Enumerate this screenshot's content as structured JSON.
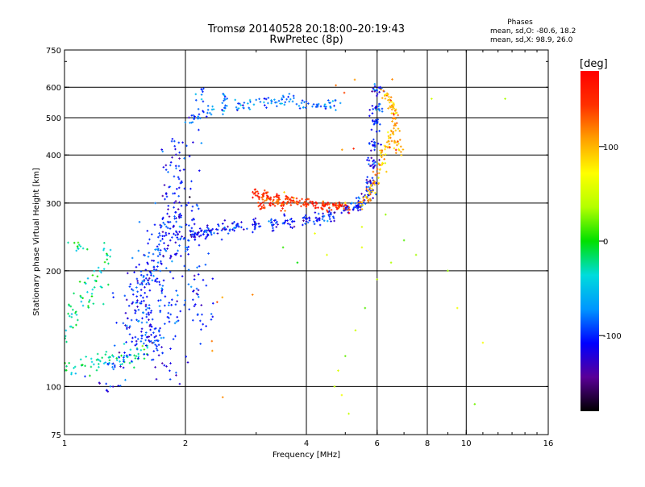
{
  "chart_data": {
    "type": "scatter",
    "title": "Tromsø 20140528 20:18:00–20:19:43",
    "subtitle": "RwPretec (8p)",
    "info": {
      "heading": "Phases",
      "line1": "mean, sd,O: -80.6, 18.2",
      "line2": "mean, sd,X:  98.9, 26.0"
    },
    "xlabel": "Frequency [MHz]",
    "ylabel": "Stationary phase Virtual Height [km]",
    "x_scale": "log",
    "y_scale": "log",
    "xlim": [
      1,
      16
    ],
    "ylim": [
      75,
      750
    ],
    "x_ticks": [
      {
        "v": 1,
        "label": "1"
      },
      {
        "v": 2,
        "label": "2"
      },
      {
        "v": 4,
        "label": "4"
      },
      {
        "v": 6,
        "label": "6"
      },
      {
        "v": 8,
        "label": "8"
      },
      {
        "v": 10,
        "label": "10"
      },
      {
        "v": 16,
        "label": "16"
      }
    ],
    "x_grid": [
      2,
      4,
      6,
      8,
      10
    ],
    "y_ticks": [
      {
        "v": 75,
        "label": "75"
      },
      {
        "v": 100,
        "label": "100"
      },
      {
        "v": 200,
        "label": "200"
      },
      {
        "v": 300,
        "label": "300"
      },
      {
        "v": 400,
        "label": "400"
      },
      {
        "v": 500,
        "label": "500"
      },
      {
        "v": 600,
        "label": "600"
      },
      {
        "v": 750,
        "label": "750"
      }
    ],
    "y_grid": [
      100,
      200,
      300,
      400,
      500,
      600
    ],
    "grid": true,
    "colorbar": {
      "label": "[deg]",
      "range": [
        -180,
        180
      ],
      "ticks": [
        {
          "v": 100,
          "label": "100"
        },
        {
          "v": 0,
          "label": "0"
        },
        {
          "v": -100,
          "label": "-100"
        }
      ],
      "colors": [
        "#000000",
        "#5a0098",
        "#0000ff",
        "#0096ff",
        "#00dcdc",
        "#00e000",
        "#b4ff00",
        "#ffff00",
        "#ffa000",
        "#ff3000",
        "#ff0000"
      ]
    },
    "series": [
      {
        "points": [
          [
            1.0,
            132
          ],
          [
            1.03,
            140
          ],
          [
            1.05,
            150
          ],
          [
            1.08,
            160
          ],
          [
            1.12,
            175
          ],
          [
            1.15,
            188
          ],
          [
            1.2,
            198
          ],
          [
            1.25,
            210
          ],
          [
            1.28,
            222
          ],
          [
            1.1,
            228
          ],
          [
            1.05,
            232
          ],
          [
            1.0,
            110
          ],
          [
            1.05,
            112
          ],
          [
            1.1,
            114
          ],
          [
            1.15,
            113
          ],
          [
            1.2,
            115
          ],
          [
            1.25,
            118
          ],
          [
            1.3,
            120
          ],
          [
            1.35,
            118
          ],
          [
            1.4,
            116
          ],
          [
            1.45,
            118
          ],
          [
            1.5,
            122
          ],
          [
            1.55,
            125
          ],
          [
            1.6,
            122
          ],
          [
            1.05,
            155
          ],
          [
            1.15,
            165
          ],
          [
            1.22,
            185
          ]
        ],
        "phase": -25,
        "spread": [
          0.03,
          0.025
        ],
        "jitter": 2
      },
      {
        "points": [
          [
            1.3,
            105
          ],
          [
            1.35,
            115
          ],
          [
            1.4,
            125
          ],
          [
            1.45,
            140
          ],
          [
            1.5,
            160
          ],
          [
            1.55,
            175
          ],
          [
            1.6,
            190
          ],
          [
            1.65,
            200
          ],
          [
            1.7,
            210
          ],
          [
            1.75,
            220
          ],
          [
            1.8,
            230
          ],
          [
            1.85,
            245
          ],
          [
            1.9,
            260
          ],
          [
            1.95,
            275
          ],
          [
            2.0,
            290
          ],
          [
            1.9,
            320
          ],
          [
            1.85,
            350
          ],
          [
            1.9,
            380
          ],
          [
            1.95,
            420
          ],
          [
            1.8,
            150
          ],
          [
            1.75,
            170
          ],
          [
            1.7,
            185
          ],
          [
            1.6,
            160
          ],
          [
            1.65,
            140
          ],
          [
            1.7,
            130
          ],
          [
            1.75,
            120
          ],
          [
            1.8,
            115
          ],
          [
            1.6,
            125
          ],
          [
            1.55,
            135
          ],
          [
            1.5,
            150
          ],
          [
            1.45,
            165
          ],
          [
            1.55,
            190
          ],
          [
            1.6,
            210
          ],
          [
            1.7,
            250
          ],
          [
            1.8,
            270
          ],
          [
            1.85,
            300
          ],
          [
            2.0,
            250
          ],
          [
            2.05,
            230
          ],
          [
            2.1,
            200
          ],
          [
            2.05,
            180
          ],
          [
            2.1,
            160
          ],
          [
            2.15,
            150
          ]
        ],
        "phase": -100,
        "spread": [
          0.05,
          0.05
        ],
        "jitter": 4
      },
      {
        "points": [
          [
            2.1,
            250
          ],
          [
            2.2,
            252
          ],
          [
            2.3,
            255
          ],
          [
            2.5,
            258
          ],
          [
            2.7,
            260
          ],
          [
            3.0,
            262
          ],
          [
            3.3,
            265
          ],
          [
            3.6,
            267
          ],
          [
            4.0,
            270
          ],
          [
            4.3,
            275
          ],
          [
            4.6,
            282
          ],
          [
            5.0,
            290
          ],
          [
            5.3,
            295
          ],
          [
            5.5,
            300
          ],
          [
            5.7,
            315
          ],
          [
            5.8,
            340
          ],
          [
            5.85,
            380
          ],
          [
            5.9,
            430
          ],
          [
            5.9,
            480
          ],
          [
            5.95,
            530
          ],
          [
            5.95,
            590
          ]
        ],
        "phase": -105,
        "spread": [
          0.018,
          0.018
        ],
        "jitter": 6
      },
      {
        "points": [
          [
            2.05,
            490
          ],
          [
            2.15,
            505
          ],
          [
            2.3,
            520
          ],
          [
            2.5,
            530
          ],
          [
            2.7,
            540
          ],
          [
            2.9,
            545
          ],
          [
            3.1,
            548
          ],
          [
            3.3,
            552
          ],
          [
            3.5,
            555
          ],
          [
            3.7,
            560
          ],
          [
            3.9,
            540
          ],
          [
            4.2,
            535
          ],
          [
            4.5,
            540
          ],
          [
            4.7,
            545
          ],
          [
            2.2,
            580
          ],
          [
            2.5,
            560
          ]
        ],
        "phase": -80,
        "spread": [
          0.02,
          0.02
        ],
        "jitter": 3
      },
      {
        "points": [
          [
            3.0,
            320
          ],
          [
            3.1,
            315
          ],
          [
            3.2,
            312
          ],
          [
            3.4,
            310
          ],
          [
            3.6,
            305
          ],
          [
            3.8,
            302
          ],
          [
            4.0,
            300
          ],
          [
            4.2,
            298
          ],
          [
            4.4,
            296
          ],
          [
            4.6,
            295
          ],
          [
            4.8,
            294
          ],
          [
            5.0,
            293
          ],
          [
            3.1,
            295
          ],
          [
            3.3,
            300
          ],
          [
            3.5,
            295
          ]
        ],
        "phase": 150,
        "spread": [
          0.012,
          0.015
        ],
        "jitter": 4
      },
      {
        "points": [
          [
            5.5,
            300
          ],
          [
            5.7,
            310
          ],
          [
            5.8,
            320
          ],
          [
            5.9,
            340
          ],
          [
            6.0,
            360
          ],
          [
            6.1,
            380
          ],
          [
            6.2,
            400
          ],
          [
            6.3,
            420
          ],
          [
            6.4,
            440
          ],
          [
            6.5,
            460
          ],
          [
            6.6,
            480
          ],
          [
            6.7,
            500
          ],
          [
            6.6,
            520
          ],
          [
            6.5,
            540
          ],
          [
            6.4,
            560
          ],
          [
            6.3,
            580
          ],
          [
            6.7,
            430
          ],
          [
            6.8,
            410
          ]
        ],
        "phase": 100,
        "spread": [
          0.015,
          0.015
        ],
        "jitter": 3
      },
      {
        "points": [
          [
            2.4,
            165
          ],
          [
            2.5,
            170
          ],
          [
            2.3,
            125
          ],
          [
            2.35,
            130
          ],
          [
            2.9,
            175
          ],
          [
            3.5,
            315
          ],
          [
            5.0,
            410
          ],
          [
            5.3,
            420
          ],
          [
            4.7,
            600
          ],
          [
            4.9,
            580
          ],
          [
            5.2,
            620
          ],
          [
            6.5,
            630
          ],
          [
            2.45,
            92
          ]
        ],
        "phase": 120,
        "spread": [
          0.01,
          0.01
        ],
        "jitter": 1
      },
      {
        "points": [
          [
            3.2,
            305
          ],
          [
            3.4,
            300
          ],
          [
            3.7,
            302
          ],
          [
            4.0,
            298
          ],
          [
            4.4,
            296
          ],
          [
            4.8,
            295
          ],
          [
            3.6,
            312
          ]
        ],
        "phase": 140,
        "spread": [
          0.01,
          0.01
        ],
        "jitter": 2
      },
      {
        "points": [
          [
            4.7,
            100
          ],
          [
            4.8,
            110
          ],
          [
            5.0,
            120
          ],
          [
            5.3,
            140
          ],
          [
            5.6,
            160
          ],
          [
            6.0,
            190
          ],
          [
            6.5,
            210
          ],
          [
            7.0,
            240
          ],
          [
            7.5,
            220
          ],
          [
            8.2,
            560
          ],
          [
            9.0,
            200
          ],
          [
            9.5,
            160
          ],
          [
            10.5,
            90
          ],
          [
            11.0,
            130
          ],
          [
            12.5,
            560
          ],
          [
            6.3,
            280
          ],
          [
            5.5,
            230
          ],
          [
            4.9,
            95
          ],
          [
            5.1,
            85
          ],
          [
            5.5,
            260
          ],
          [
            5.0,
            300
          ],
          [
            4.5,
            220
          ],
          [
            4.2,
            250
          ],
          [
            3.8,
            210
          ],
          [
            3.5,
            230
          ]
        ],
        "phase": 40,
        "spread": [
          0.0,
          0.0
        ],
        "jitter": 1
      }
    ]
  }
}
